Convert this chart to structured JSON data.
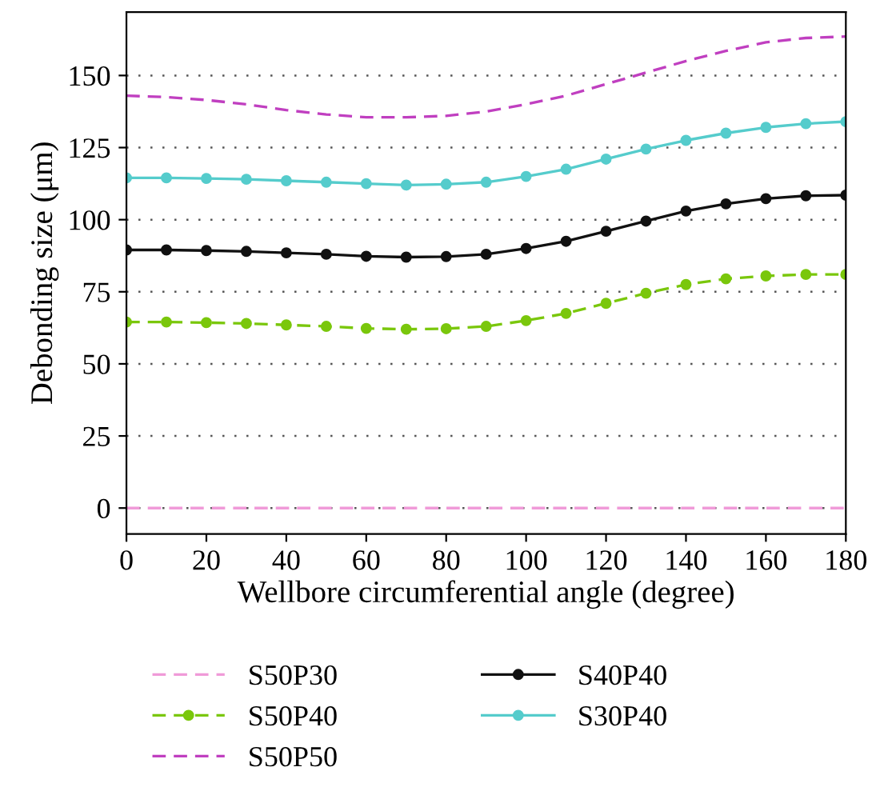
{
  "chart_data": {
    "type": "line",
    "xlabel": "Wellbore circumferential angle (degree)",
    "ylabel": "Debonding size (μm)",
    "x": [
      0,
      10,
      20,
      30,
      40,
      50,
      60,
      70,
      80,
      90,
      100,
      110,
      120,
      130,
      140,
      150,
      160,
      170,
      180
    ],
    "xlim": [
      0,
      180
    ],
    "xticks": [
      0,
      20,
      40,
      60,
      80,
      100,
      120,
      140,
      160,
      180
    ],
    "ylim": [
      -9,
      172
    ],
    "yticks": [
      0,
      25,
      50,
      75,
      100,
      125,
      150
    ],
    "grid": "y",
    "legend": "bottom",
    "series": [
      {
        "name": "S50P30",
        "color": "#f09ad8",
        "line_style": "dashed",
        "marker": "none",
        "values": [
          0,
          0,
          0,
          0,
          0,
          0,
          0,
          0,
          0,
          0,
          0,
          0,
          0,
          0,
          0,
          0,
          0,
          0,
          0
        ]
      },
      {
        "name": "S50P40",
        "color": "#7ac70c",
        "line_style": "dashed",
        "marker": "circle",
        "values": [
          64.5,
          64.5,
          64.3,
          64,
          63.5,
          63,
          62.3,
          62,
          62.2,
          63,
          65,
          67.5,
          71,
          74.5,
          77.5,
          79.5,
          80.5,
          81,
          81
        ]
      },
      {
        "name": "S50P50",
        "color": "#c03fc0",
        "line_style": "dashed",
        "marker": "none",
        "values": [
          143,
          142.5,
          141.5,
          140,
          138,
          136.5,
          135.5,
          135.5,
          136,
          137.5,
          140,
          143,
          147,
          151,
          155,
          158.5,
          161.5,
          163,
          163.5
        ]
      },
      {
        "name": "S40P40",
        "color": "#111111",
        "line_style": "solid",
        "marker": "circle",
        "values": [
          89.5,
          89.5,
          89.3,
          89,
          88.5,
          88,
          87.3,
          87,
          87.2,
          88,
          90,
          92.5,
          96,
          99.5,
          103,
          105.5,
          107.3,
          108.3,
          108.5
        ]
      },
      {
        "name": "S30P40",
        "color": "#55cccc",
        "line_style": "solid",
        "marker": "circle",
        "values": [
          114.5,
          114.5,
          114.3,
          114,
          113.5,
          113,
          112.5,
          112,
          112.3,
          113,
          115,
          117.5,
          121,
          124.5,
          127.5,
          130,
          132,
          133.3,
          134
        ]
      }
    ]
  }
}
